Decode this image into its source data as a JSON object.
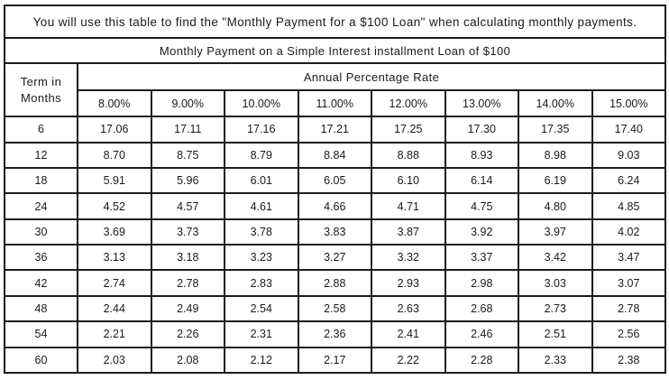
{
  "table": {
    "instruction": "You will use this table to find the \"Monthly Payment for a $100 Loan\" when calculating monthly payments.",
    "title": "Monthly Payment on a Simple Interest installment Loan of $100",
    "corner_header": "Term in Months",
    "apr_header": "Annual Percentage Rate",
    "rate_columns": [
      "8.00%",
      "9.00%",
      "10.00%",
      "11.00%",
      "12.00%",
      "13.00%",
      "14.00%",
      "15.00%"
    ],
    "rows": [
      {
        "term": "6",
        "values": [
          "17.06",
          "17.11",
          "17.16",
          "17.21",
          "17.25",
          "17.30",
          "17.35",
          "17.40"
        ]
      },
      {
        "term": "12",
        "values": [
          "8.70",
          "8.75",
          "8.79",
          "8.84",
          "8.88",
          "8.93",
          "8.98",
          "9.03"
        ]
      },
      {
        "term": "18",
        "values": [
          "5.91",
          "5.96",
          "6.01",
          "6.05",
          "6.10",
          "6.14",
          "6.19",
          "6.24"
        ]
      },
      {
        "term": "24",
        "values": [
          "4.52",
          "4.57",
          "4.61",
          "4.66",
          "4.71",
          "4.75",
          "4.80",
          "4.85"
        ]
      },
      {
        "term": "30",
        "values": [
          "3.69",
          "3.73",
          "3.78",
          "3.83",
          "3.87",
          "3.92",
          "3.97",
          "4.02"
        ]
      },
      {
        "term": "36",
        "values": [
          "3.13",
          "3.18",
          "3.23",
          "3.27",
          "3.32",
          "3.37",
          "3.42",
          "3.47"
        ]
      },
      {
        "term": "42",
        "values": [
          "2.74",
          "2.78",
          "2.83",
          "2.88",
          "2.93",
          "2.98",
          "3.03",
          "3.07"
        ]
      },
      {
        "term": "48",
        "values": [
          "2.44",
          "2.49",
          "2.54",
          "2.58",
          "2.63",
          "2.68",
          "2.73",
          "2.78"
        ]
      },
      {
        "term": "54",
        "values": [
          "2.21",
          "2.26",
          "2.31",
          "2.36",
          "2.41",
          "2.46",
          "2.51",
          "2.56"
        ]
      },
      {
        "term": "60",
        "values": [
          "2.03",
          "2.08",
          "2.12",
          "2.17",
          "2.22",
          "2.28",
          "2.33",
          "2.38"
        ]
      }
    ]
  },
  "colors": {
    "border": "#1c1c1c",
    "text": "#1a1a1a",
    "background": "#ffffff"
  }
}
